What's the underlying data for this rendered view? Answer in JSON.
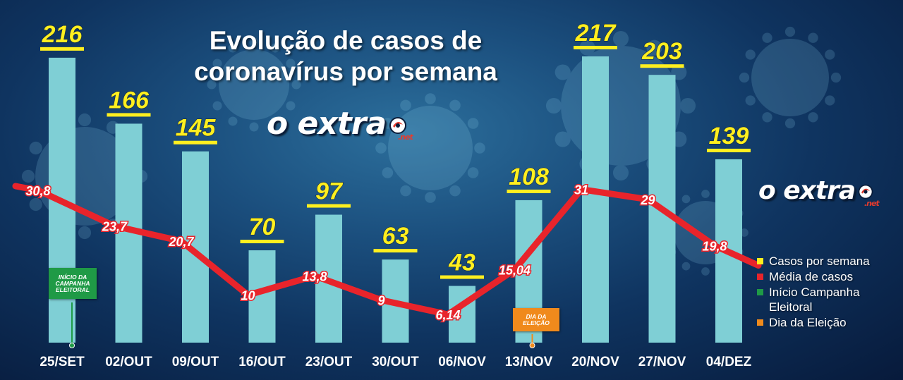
{
  "title_line1": "Evolução de casos de",
  "title_line2": "coronavírus por semana",
  "brand": "o extra",
  "brand_suffix": ".net",
  "tags": {
    "campaign": "INÍCIO DA CAMPANHA ELEITORAL",
    "election": "DIA DA ELEIÇÃO"
  },
  "colors": {
    "bar": "#7fcfd5",
    "bar_label": "#ffef1f",
    "line": "#e8242b",
    "campaign": "#1f9a46",
    "election": "#f08a1c"
  },
  "legend": [
    {
      "label": "Casos por semana",
      "color": "#ffef1f"
    },
    {
      "label": "Média de casos",
      "color": "#e8242b"
    },
    {
      "label": "Início Campanha Eleitoral",
      "color": "#1f9a46"
    },
    {
      "label": "Dia da Eleição",
      "color": "#f08a1c"
    }
  ],
  "chart_data": {
    "type": "bar",
    "title": "Evolução de casos de coronavírus por semana",
    "categories": [
      "25/SET",
      "02/OUT",
      "09/OUT",
      "16/OUT",
      "23/OUT",
      "30/OUT",
      "06/NOV",
      "13/NOV",
      "20/NOV",
      "27/NOV",
      "04/DEZ"
    ],
    "series": [
      {
        "name": "Casos por semana",
        "type": "bar",
        "values": [
          216,
          166,
          145,
          70,
          97,
          63,
          43,
          108,
          217,
          203,
          139
        ]
      },
      {
        "name": "Média de casos",
        "type": "line",
        "values": [
          30.8,
          23.7,
          20.7,
          10,
          13.8,
          9,
          6.14,
          15.04,
          31,
          29,
          19.8
        ],
        "labels": [
          "30,8",
          "23,7",
          "20,7",
          "10",
          "13,8",
          "9",
          "6,14",
          "15,04",
          "31",
          "29",
          "19,8"
        ]
      }
    ],
    "markers": [
      {
        "category": "25/SET",
        "label": "INÍCIO DA CAMPANHA ELEITORAL",
        "color": "#1f9a46"
      },
      {
        "category": "13/NOV",
        "label": "DIA DA ELEIÇÃO",
        "color": "#f08a1c"
      }
    ],
    "grid": false,
    "legend_position": "right"
  }
}
